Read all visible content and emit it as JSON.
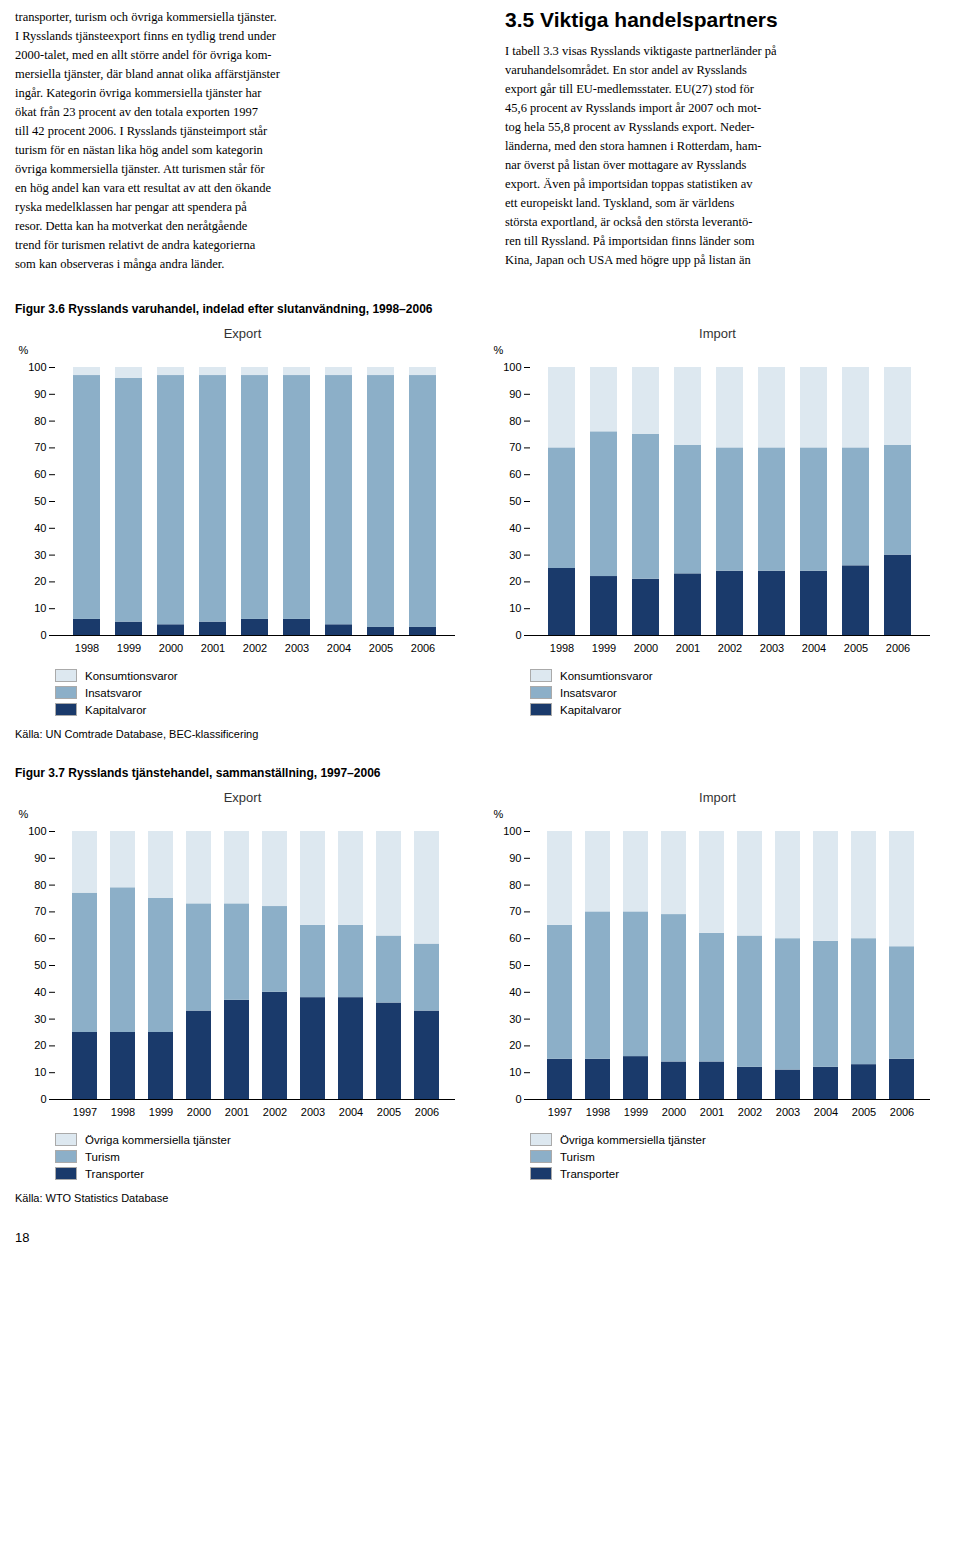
{
  "body_text_left": "transporter, turism och övriga kommersiella tjänster.\nI Rysslands tjänsteexport finns en tydlig trend under\n2000-talet, med en allt större andel för övriga kom-\nmersiella tjänster, där bland annat olika affärstjänster\ningår. Kategorin övriga kommersiella tjänster har\nökat från 23 procent av den totala exporten 1997\ntill 42 procent 2006. I Rysslands tjänsteimport står\nturism för en nästan lika hög andel som kategorin\növriga kommersiella tjänster. Att turismen står för\nen hög andel kan vara ett resultat av att den ökande\nryska medelklassen har pengar att spendera på\nresor. Detta kan ha motverkat den neråtgående\ntrend för turismen relativt de andra kategorierna\nsom kan observeras i många andra länder.",
  "heading": "3.5 Viktiga handelspartners",
  "body_text_right": "I tabell 3.3 visas Rysslands viktigaste partnerländer på\nvaruhandelsområdet. En stor andel av Rysslands\nexport går till EU-medlemsstater. EU(27) stod för\n45,6 procent av Rysslands import år 2007 och mot-\ntog hela 55,8 procent av Rysslands export. Neder-\nländerna, med den stora hamnen i Rotterdam, ham-\nnar överst på listan över mottagare av Rysslands\nexport. Även på importsidan toppas statistiken av\nett europeiskt land. Tyskland, som är världens\nstörsta exportland, är också den största leverantö-\nren till Ryssland. På importsidan finns länder som\nKina, Japan och USA med högre upp på listan än",
  "page_number": "18",
  "chart_data": [
    {
      "type": "bar",
      "stacked": true,
      "title": "Figur 3.6 Rysslands varuhandel, indelad efter slutanvändning, 1998–2006",
      "subtitle": "Export",
      "annotations": [
        "Källa: UN Comtrade Database, BEC-klassificering"
      ],
      "y_label": "%",
      "categories": [
        "1998",
        "1999",
        "2000",
        "2001",
        "2002",
        "2003",
        "2004",
        "2005",
        "2006"
      ],
      "series": [
        {
          "name": "Kapitalvaror",
          "color": "#1a3a6b",
          "values": [
            6,
            5,
            4,
            5,
            6,
            6,
            4,
            3,
            3
          ]
        },
        {
          "name": "Insatsvaror",
          "color": "#8cafc8",
          "values": [
            91,
            91,
            93,
            92,
            91,
            91,
            93,
            94,
            94
          ]
        },
        {
          "name": "Konsumtionsvaror",
          "color": "#dde8f0",
          "values": [
            3,
            4,
            3,
            3,
            3,
            3,
            3,
            3,
            3
          ]
        }
      ],
      "ylim": [
        0,
        100
      ],
      "yticks": [
        0,
        10,
        20,
        30,
        40,
        50,
        60,
        70,
        80,
        90,
        100
      ],
      "grid": false,
      "legend": "bottom"
    },
    {
      "type": "bar",
      "stacked": true,
      "subtitle": "Import",
      "y_label": "%",
      "categories": [
        "1998",
        "1999",
        "2000",
        "2001",
        "2002",
        "2003",
        "2004",
        "2005",
        "2006"
      ],
      "series": [
        {
          "name": "Kapitalvaror",
          "color": "#1a3a6b",
          "values": [
            25,
            22,
            21,
            23,
            24,
            24,
            24,
            26,
            30
          ]
        },
        {
          "name": "Insatsvaror",
          "color": "#8cafc8",
          "values": [
            45,
            54,
            54,
            48,
            46,
            46,
            46,
            44,
            41
          ]
        },
        {
          "name": "Konsumtionsvaror",
          "color": "#dde8f0",
          "values": [
            30,
            24,
            25,
            29,
            30,
            30,
            30,
            30,
            29
          ]
        }
      ],
      "ylim": [
        0,
        100
      ],
      "yticks": [
        0,
        10,
        20,
        30,
        40,
        50,
        60,
        70,
        80,
        90,
        100
      ],
      "grid": false,
      "legend": "bottom"
    },
    {
      "type": "bar",
      "stacked": true,
      "title": "Figur 3.7 Rysslands tjänstehandel, sammanställning, 1997–2006",
      "subtitle": "Export",
      "annotations": [
        "Källa: WTO Statistics Database"
      ],
      "y_label": "%",
      "categories": [
        "1997",
        "1998",
        "1999",
        "2000",
        "2001",
        "2002",
        "2003",
        "2004",
        "2005",
        "2006"
      ],
      "series": [
        {
          "name": "Transporter",
          "color": "#1a3a6b",
          "values": [
            25,
            25,
            25,
            33,
            37,
            40,
            38,
            38,
            36,
            33
          ]
        },
        {
          "name": "Turism",
          "color": "#8cafc8",
          "values": [
            52,
            54,
            50,
            40,
            36,
            32,
            27,
            27,
            25,
            25
          ]
        },
        {
          "name": "Övriga kommersiella tjänster",
          "color": "#dde8f0",
          "values": [
            23,
            21,
            25,
            27,
            27,
            28,
            35,
            35,
            39,
            42
          ]
        }
      ],
      "ylim": [
        0,
        100
      ],
      "yticks": [
        0,
        10,
        20,
        30,
        40,
        50,
        60,
        70,
        80,
        90,
        100
      ],
      "grid": false,
      "legend": "bottom"
    },
    {
      "type": "bar",
      "stacked": true,
      "subtitle": "Import",
      "y_label": "%",
      "categories": [
        "1997",
        "1998",
        "1999",
        "2000",
        "2001",
        "2002",
        "2003",
        "2004",
        "2005",
        "2006"
      ],
      "series": [
        {
          "name": "Transporter",
          "color": "#1a3a6b",
          "values": [
            15,
            15,
            16,
            14,
            14,
            12,
            11,
            12,
            13,
            15
          ]
        },
        {
          "name": "Turism",
          "color": "#8cafc8",
          "values": [
            50,
            55,
            54,
            55,
            48,
            49,
            49,
            47,
            47,
            42
          ]
        },
        {
          "name": "Övriga kommersiella tjänster",
          "color": "#dde8f0",
          "values": [
            35,
            30,
            30,
            31,
            38,
            39,
            40,
            41,
            40,
            43
          ]
        }
      ],
      "ylim": [
        0,
        100
      ],
      "yticks": [
        0,
        10,
        20,
        30,
        40,
        50,
        60,
        70,
        80,
        90,
        100
      ],
      "grid": false,
      "legend": "bottom"
    }
  ]
}
